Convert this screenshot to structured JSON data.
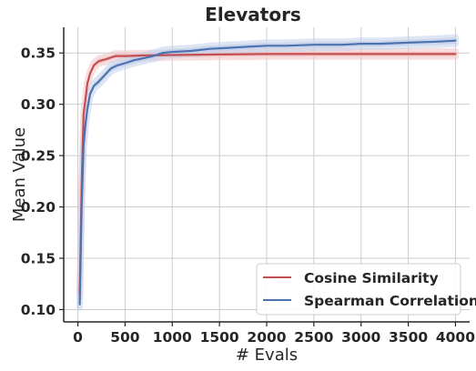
{
  "chart_data": {
    "type": "line",
    "title": "Elevators",
    "xlabel": "# Evals",
    "ylabel": "Mean Value",
    "xlim": [
      -150,
      4150
    ],
    "ylim": [
      0.088,
      0.375
    ],
    "xticks": [
      0,
      500,
      1000,
      1500,
      2000,
      2500,
      3000,
      3500,
      4000
    ],
    "yticks": [
      0.1,
      0.15,
      0.2,
      0.25,
      0.3,
      0.35
    ],
    "xtick_labels": [
      "0",
      "500",
      "1000",
      "1500",
      "2000",
      "2500",
      "3000",
      "3500",
      "4000"
    ],
    "ytick_labels": [
      "0.10",
      "0.15",
      "0.20",
      "0.25",
      "0.30",
      "0.35"
    ],
    "grid": true,
    "legend_position": "lower-right",
    "series": [
      {
        "name": "Cosine Similarity",
        "color": "#c44e52",
        "band_color": "#f2c4c4",
        "band_halfwidth": 0.0025,
        "points": [
          [
            20,
            0.115
          ],
          [
            40,
            0.22
          ],
          [
            60,
            0.29
          ],
          [
            80,
            0.305
          ],
          [
            100,
            0.32
          ],
          [
            130,
            0.33
          ],
          [
            170,
            0.338
          ],
          [
            220,
            0.342
          ],
          [
            300,
            0.344
          ],
          [
            400,
            0.347
          ],
          [
            500,
            0.347
          ],
          [
            700,
            0.3475
          ],
          [
            1000,
            0.348
          ],
          [
            1500,
            0.3485
          ],
          [
            2000,
            0.349
          ],
          [
            2500,
            0.349
          ],
          [
            3000,
            0.349
          ],
          [
            3500,
            0.349
          ],
          [
            4000,
            0.349
          ]
        ]
      },
      {
        "name": "Spearman Correlation",
        "color": "#4c72b0",
        "band_color": "#c2d0ea",
        "band_halfwidth": 0.003,
        "points": [
          [
            20,
            0.105
          ],
          [
            40,
            0.2
          ],
          [
            60,
            0.26
          ],
          [
            80,
            0.28
          ],
          [
            100,
            0.295
          ],
          [
            130,
            0.31
          ],
          [
            170,
            0.318
          ],
          [
            220,
            0.322
          ],
          [
            280,
            0.328
          ],
          [
            350,
            0.335
          ],
          [
            420,
            0.338
          ],
          [
            500,
            0.34
          ],
          [
            600,
            0.343
          ],
          [
            700,
            0.345
          ],
          [
            800,
            0.347
          ],
          [
            900,
            0.35
          ],
          [
            1000,
            0.351
          ],
          [
            1200,
            0.352
          ],
          [
            1400,
            0.354
          ],
          [
            1600,
            0.355
          ],
          [
            1800,
            0.356
          ],
          [
            2000,
            0.357
          ],
          [
            2200,
            0.357
          ],
          [
            2500,
            0.358
          ],
          [
            2800,
            0.358
          ],
          [
            3000,
            0.359
          ],
          [
            3200,
            0.359
          ],
          [
            3500,
            0.36
          ],
          [
            3800,
            0.361
          ],
          [
            4000,
            0.362
          ]
        ]
      }
    ]
  }
}
